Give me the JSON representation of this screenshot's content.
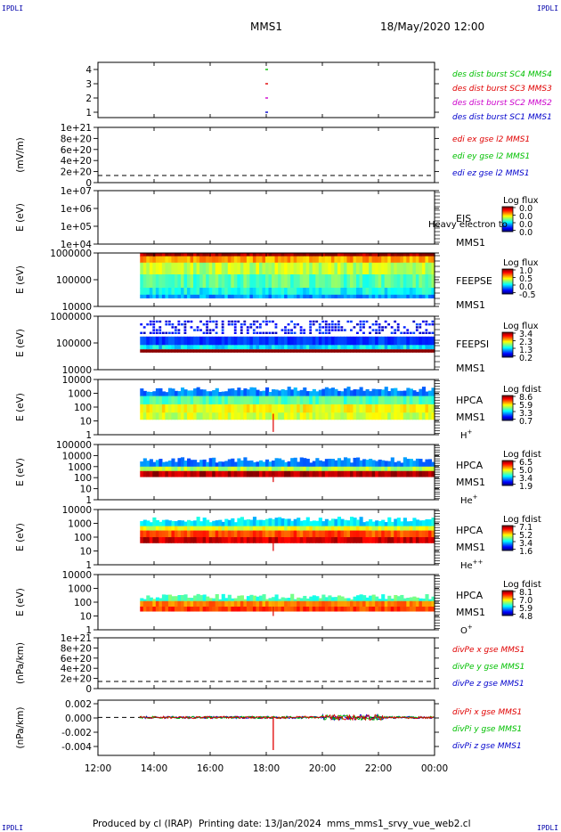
{
  "header": {
    "corner_tl": "IPDLI",
    "corner_tr": "IPDLI",
    "corner_bl": "IPDLI",
    "corner_br": "IPDLI",
    "mission": "MMS1",
    "date": "18/May/2020 12:00"
  },
  "footer": {
    "produced": "Produced by cl (IRAP)",
    "printing": "Printing date: 13/Jan/2024",
    "file": "mms_mms1_srvy_vue_web2.cl"
  },
  "colors": {
    "red": "#e00000",
    "magenta": "#cc00cc",
    "green": "#00c000",
    "blue": "#0000cc",
    "black": "#000000"
  },
  "time_axis": {
    "ticks": [
      "12:00",
      "14:00",
      "16:00",
      "18:00",
      "20:00",
      "22:00",
      "00:00"
    ],
    "data_start": "13:30"
  },
  "chart_data": [
    {
      "id": "burst",
      "type": "scatter",
      "yticks": [
        "1",
        "2",
        "3",
        "4"
      ],
      "series": [
        {
          "name": "des dist burst SC1 MMS1",
          "color": "#0000cc",
          "x": "18:00",
          "y": 1
        },
        {
          "name": "des dist burst SC2 MMS2",
          "color": "#cc00cc",
          "x": "18:00",
          "y": 2
        },
        {
          "name": "des dist burst SC3 MMS3",
          "color": "#e00000",
          "x": "18:00",
          "y": 3
        },
        {
          "name": "des dist burst SC4 MMS4",
          "color": "#00c000",
          "x": "18:00",
          "y": 4
        }
      ]
    },
    {
      "id": "edi",
      "type": "line",
      "ylabel": "(mV/m)",
      "yticks": [
        "0",
        "2e+20",
        "4e+20",
        "6e+20",
        "8e+20",
        "1e+21"
      ],
      "series": [
        {
          "name": "edi ex gse l2 MMS1",
          "color": "#e00000"
        },
        {
          "name": "edi ey gse l2 MMS1",
          "color": "#00c000"
        },
        {
          "name": "edi ez gse l2 MMS1",
          "color": "#0000cc"
        }
      ]
    },
    {
      "id": "eis",
      "type": "heatmap",
      "ylabel": "E (eV)",
      "yticks": [
        "1e+04",
        "1e+05",
        "1e+06",
        "1e+07"
      ],
      "instrument": "EIS",
      "spacecraft": "MMS1",
      "overlay": "Heavy electron to",
      "cbar_title": "Log flux",
      "cbar_ticks": [
        "0.0",
        "0.0",
        "0.0",
        "0.0"
      ]
    },
    {
      "id": "feepse",
      "type": "heatmap",
      "ylabel": "E (eV)",
      "yticks": [
        "10000",
        "100000",
        "1000000"
      ],
      "instrument": "FEEPSE",
      "spacecraft": "MMS1",
      "cbar_title": "Log flux",
      "cbar_ticks": [
        "1.0",
        "0.5",
        "0.0",
        "-0.5"
      ]
    },
    {
      "id": "feepsi",
      "type": "heatmap",
      "ylabel": "E (eV)",
      "yticks": [
        "10000",
        "100000",
        "1000000"
      ],
      "instrument": "FEEPSI",
      "spacecraft": "MMS1",
      "cbar_title": "Log flux",
      "cbar_ticks": [
        "3.4",
        "2.3",
        "1.3",
        "0.2"
      ]
    },
    {
      "id": "hpca_h",
      "type": "heatmap",
      "ylabel": "E (eV)",
      "yticks": [
        "1",
        "10",
        "100",
        "1000",
        "10000"
      ],
      "instrument": "HPCA",
      "spacecraft": "MMS1",
      "species": "H",
      "charge": "+",
      "cbar_title": "Log fdist",
      "cbar_ticks": [
        "8.6",
        "5.9",
        "3.3",
        "0.7"
      ]
    },
    {
      "id": "hpca_he",
      "type": "heatmap",
      "ylabel": "E (eV)",
      "yticks": [
        "1",
        "10",
        "100",
        "1000",
        "10000",
        "100000"
      ],
      "instrument": "HPCA",
      "spacecraft": "MMS1",
      "species": "He",
      "charge": "+",
      "cbar_title": "Log fdist",
      "cbar_ticks": [
        "6.5",
        "5.0",
        "3.4",
        "1.9"
      ]
    },
    {
      "id": "hpca_hepp",
      "type": "heatmap",
      "ylabel": "E (eV)",
      "yticks": [
        "1",
        "10",
        "100",
        "1000",
        "10000"
      ],
      "instrument": "HPCA",
      "spacecraft": "MMS1",
      "species": "He",
      "charge": "++",
      "cbar_title": "Log fdist",
      "cbar_ticks": [
        "7.1",
        "5.2",
        "3.4",
        "1.6"
      ]
    },
    {
      "id": "hpca_o",
      "type": "heatmap",
      "ylabel": "E (eV)",
      "yticks": [
        "1",
        "10",
        "100",
        "1000",
        "10000"
      ],
      "instrument": "HPCA",
      "spacecraft": "MMS1",
      "species": "O",
      "charge": "+",
      "cbar_title": "Log fdist",
      "cbar_ticks": [
        "8.1",
        "7.0",
        "5.9",
        "4.8"
      ]
    },
    {
      "id": "divpe",
      "type": "line",
      "ylabel": "(nPa/km)",
      "yticks": [
        "0",
        "2e+20",
        "4e+20",
        "6e+20",
        "8e+20",
        "1e+21"
      ],
      "series": [
        {
          "name": "divPe x gse MMS1",
          "color": "#e00000"
        },
        {
          "name": "divPe y gse MMS1",
          "color": "#00c000"
        },
        {
          "name": "divPe z gse MMS1",
          "color": "#0000cc"
        }
      ]
    },
    {
      "id": "divpi",
      "type": "line",
      "ylabel": "(nPa/km)",
      "yticks": [
        "-0.004",
        "-0.002",
        "0.000",
        "0.002"
      ],
      "ylim": [
        -0.0055,
        0.0025
      ],
      "spike": {
        "x": "18:15",
        "y": -0.0055
      },
      "series": [
        {
          "name": "divPi x gse MMS1",
          "color": "#e00000"
        },
        {
          "name": "divPi y gse MMS1",
          "color": "#00c000"
        },
        {
          "name": "divPi z gse MMS1",
          "color": "#0000cc"
        }
      ]
    }
  ]
}
